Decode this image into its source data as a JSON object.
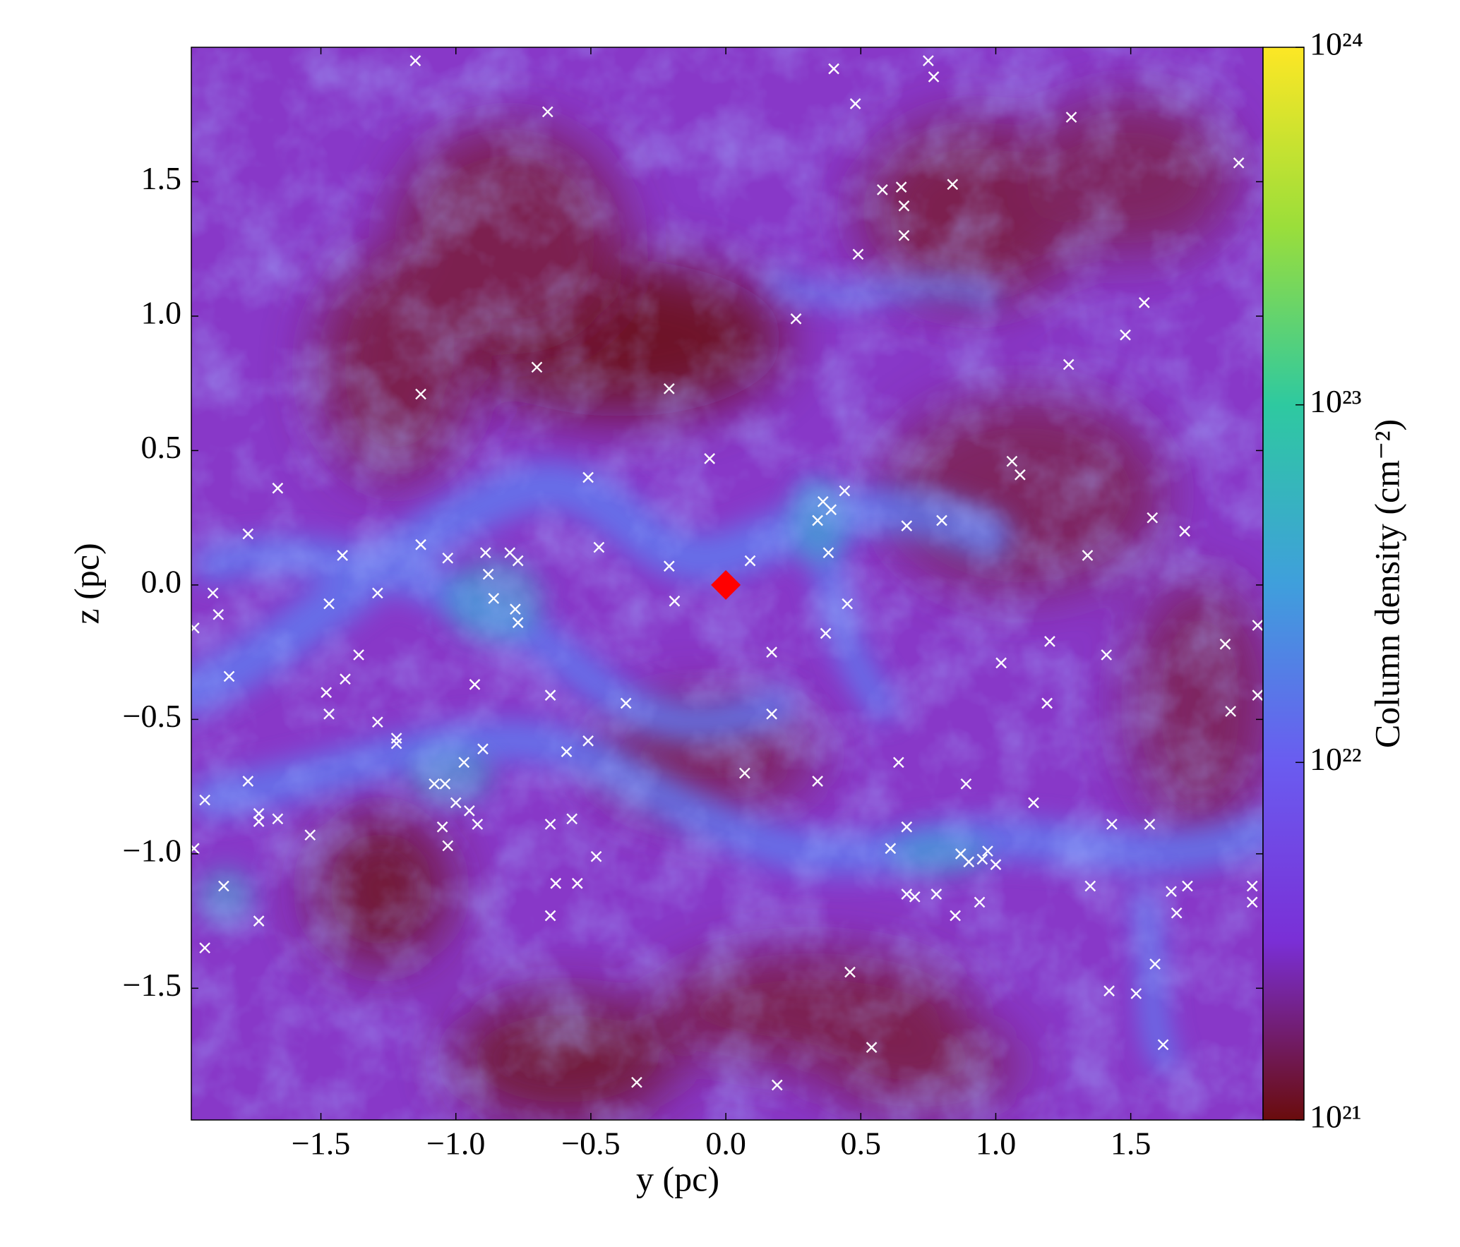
{
  "chart_data": {
    "type": "scatter",
    "xlabel": "y  (pc)",
    "ylabel": "z  (pc)",
    "xlim": [
      -1.98,
      1.99
    ],
    "ylim": [
      -1.99,
      2.0
    ],
    "xticks": [
      {
        "value": -1.5,
        "label": "−1.5"
      },
      {
        "value": -1.0,
        "label": "−1.0"
      },
      {
        "value": -0.5,
        "label": "−0.5"
      },
      {
        "value": 0,
        "label": "0.0"
      },
      0.5,
      {
        "value": 1,
        "label": "1.0"
      },
      1.5
    ],
    "yticks": [
      {
        "value": -1.5,
        "label": "−1.5"
      },
      {
        "value": -1.0,
        "label": "−1.0"
      },
      {
        "value": -0.5,
        "label": "−0.5"
      },
      {
        "value": 0,
        "label": "0.0"
      },
      0.5,
      {
        "value": 1,
        "label": "1.0"
      },
      1.5
    ],
    "colorbar": {
      "label": "Column density (cm⁻²)",
      "log": true,
      "clim": [
        1e+21,
        1e+24
      ],
      "ticks": [
        {
          "value": 1e+21,
          "label": "10²¹"
        },
        {
          "value": 1e+22,
          "label": "10²²"
        },
        {
          "value": 1e+23,
          "label": "10²³"
        },
        {
          "value": 1e+24,
          "label": "10²⁴"
        }
      ],
      "colormap": [
        "#6a0c0c",
        "#7a2fd6",
        "#6a5cf0",
        "#3f9fdc",
        "#2ec9a0",
        "#9bde3a",
        "#fde725"
      ]
    },
    "series": [
      {
        "color": "#ffffff",
        "marker": "x",
        "x": [
          -1.15,
          -0.66,
          0.4,
          0.75,
          0.77,
          0.48,
          1.28,
          1.9,
          0.58,
          0.65,
          0.84,
          0.66,
          0.66,
          0.49,
          1.55,
          1.48,
          0.26,
          1.27,
          -0.7,
          -1.13,
          -0.21,
          -0.06,
          -0.51,
          1.06,
          1.09,
          -1.66,
          0.44,
          0.36,
          0.39,
          0.34,
          0.67,
          0.8,
          1.58,
          1.7,
          -1.77,
          -1.13,
          -1.03,
          -1.42,
          -0.47,
          -0.89,
          -0.8,
          -0.77,
          -0.88,
          -0.21,
          0.09,
          0.38,
          1.34,
          -1.9,
          -1.88,
          -1.97,
          -1.47,
          -1.29,
          -0.86,
          -0.78,
          -0.77,
          -0.19,
          0.45,
          0.37,
          0.17,
          1.2,
          1.41,
          1.85,
          1.97,
          1.02,
          -1.36,
          -1.41,
          -1.84,
          -1.48,
          -0.93,
          -0.65,
          -0.37,
          1.19,
          1.97,
          1.87,
          -1.47,
          0.17,
          -1.29,
          -1.22,
          -1.22,
          -0.51,
          -0.9,
          -0.59,
          -0.97,
          0.64,
          0.07,
          -1.08,
          -1.04,
          -1.77,
          0.34,
          0.89,
          -1.93,
          -1.0,
          -0.95,
          1.14,
          -1.73,
          -1.73,
          -1.66,
          -0.57,
          -0.65,
          -1.05,
          -0.92,
          0.67,
          1.43,
          1.57,
          -1.54,
          -1.03,
          -1.97,
          0.61,
          0.87,
          0.97,
          -0.48,
          0.9,
          0.95,
          1.0,
          -0.63,
          -0.55,
          -1.86,
          1.35,
          1.95,
          1.71,
          1.65,
          0.67,
          0.78,
          0.7,
          0.94,
          1.95,
          1.67,
          0.85,
          -0.65,
          -1.73,
          -1.93,
          0.46,
          1.59,
          1.42,
          1.52,
          0.54,
          1.62,
          -0.33,
          0.19
        ],
        "values": [
          1.95,
          1.76,
          1.92,
          1.95,
          1.89,
          1.79,
          1.74,
          1.57,
          1.47,
          1.48,
          1.49,
          1.41,
          1.3,
          1.23,
          1.05,
          0.93,
          0.99,
          0.82,
          0.81,
          0.71,
          0.73,
          0.47,
          0.4,
          0.46,
          0.41,
          0.36,
          0.35,
          0.31,
          0.28,
          0.24,
          0.22,
          0.24,
          0.25,
          0.2,
          0.19,
          0.15,
          0.1,
          0.11,
          0.14,
          0.12,
          0.12,
          0.09,
          0.04,
          0.07,
          0.09,
          0.12,
          0.11,
          -0.03,
          -0.11,
          -0.16,
          -0.07,
          -0.03,
          -0.05,
          -0.09,
          -0.14,
          -0.06,
          -0.07,
          -0.18,
          -0.25,
          -0.21,
          -0.26,
          -0.22,
          -0.15,
          -0.29,
          -0.26,
          -0.35,
          -0.34,
          -0.4,
          -0.37,
          -0.41,
          -0.44,
          -0.44,
          -0.41,
          -0.47,
          -0.48,
          -0.48,
          -0.51,
          -0.57,
          -0.59,
          -0.58,
          -0.61,
          -0.62,
          -0.66,
          -0.66,
          -0.7,
          -0.74,
          -0.74,
          -0.73,
          -0.73,
          -0.74,
          -0.8,
          -0.81,
          -0.84,
          -0.81,
          -0.85,
          -0.88,
          -0.87,
          -0.87,
          -0.89,
          -0.9,
          -0.89,
          -0.9,
          -0.89,
          -0.89,
          -0.93,
          -0.97,
          -0.98,
          -0.98,
          -1.0,
          -0.99,
          -1.01,
          -1.03,
          -1.02,
          -1.04,
          -1.11,
          -1.11,
          -1.12,
          -1.12,
          -1.12,
          -1.12,
          -1.14,
          -1.15,
          -1.15,
          -1.16,
          -1.18,
          -1.18,
          -1.22,
          -1.23,
          -1.23,
          -1.25,
          -1.35,
          -1.44,
          -1.41,
          -1.51,
          -1.52,
          -1.72,
          -1.71,
          -1.85,
          -1.86
        ]
      },
      {
        "color": "#ff0000",
        "marker": "diamond",
        "x": [
          0.0
        ],
        "values": [
          0.0
        ]
      }
    ]
  }
}
